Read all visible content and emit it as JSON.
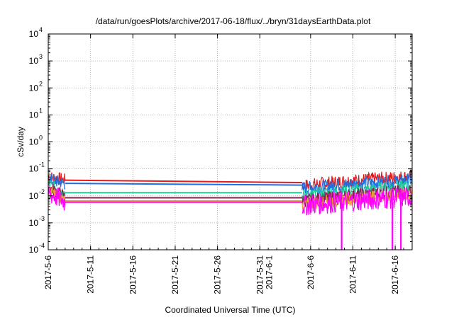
{
  "chart_data": {
    "type": "line",
    "title": "/data/run/goesPlots/archive/2017-06-18/flux/../bryn/31daysEarthData.plot",
    "xlabel": "Coordinated Universal Time (UTC)",
    "ylabel": "cSv/day",
    "yscale": "log",
    "ylim": [
      0.0001,
      10000
    ],
    "xlim": [
      "2017-05-06",
      "2017-06-18"
    ],
    "grid": true,
    "y_ticks": [
      {
        "exp": "-4",
        "value": 0.0001
      },
      {
        "exp": "-3",
        "value": 0.001
      },
      {
        "exp": "-2",
        "value": 0.01
      },
      {
        "exp": "-1",
        "value": 0.1
      },
      {
        "exp": "0",
        "value": 1
      },
      {
        "exp": "1",
        "value": 10
      },
      {
        "exp": "2",
        "value": 100
      },
      {
        "exp": "3",
        "value": 1000
      },
      {
        "exp": "4",
        "value": 10000
      }
    ],
    "x_ticks": [
      {
        "label": "2017-5-6",
        "date": "2017-05-06"
      },
      {
        "label": "2017-5-11",
        "date": "2017-05-11"
      },
      {
        "label": "2017-5-16",
        "date": "2017-05-16"
      },
      {
        "label": "2017-5-21",
        "date": "2017-05-21"
      },
      {
        "label": "2017-5-26",
        "date": "2017-05-26"
      },
      {
        "label": "2017-5-31",
        "label2": "2017-6-1",
        "date": "2017-05-31"
      },
      {
        "label": "2017-6-6",
        "date": "2017-06-06"
      },
      {
        "label": "2017-6-11",
        "date": "2017-06-11"
      },
      {
        "label": "2017-6-16",
        "date": "2017-06-16"
      }
    ],
    "series": [
      {
        "color": "#e41a1c",
        "x": [
          "2017-05-06",
          "2017-05-08",
          "2017-06-05",
          "2017-06-18"
        ],
        "y": [
          0.05,
          0.038,
          0.031,
          0.07
        ]
      },
      {
        "color": "#1f6fe0",
        "x": [
          "2017-05-06",
          "2017-05-08",
          "2017-06-05",
          "2017-06-18"
        ],
        "y": [
          0.04,
          0.029,
          0.025,
          0.05
        ]
      },
      {
        "color": "#1ec99a",
        "x": [
          "2017-05-06",
          "2017-05-08",
          "2017-06-05",
          "2017-06-18"
        ],
        "y": [
          0.025,
          0.013,
          0.013,
          0.03
        ]
      },
      {
        "color": "#8b2252",
        "x": [
          "2017-05-06",
          "2017-05-08",
          "2017-06-05",
          "2017-06-18"
        ],
        "y": [
          0.02,
          0.0085,
          0.0085,
          0.02
        ]
      },
      {
        "color": "#e8a030",
        "x": [
          "2017-05-06",
          "2017-05-08",
          "2017-06-05",
          "2017-06-18"
        ],
        "y": [
          0.015,
          0.0065,
          0.0065,
          0.015
        ]
      },
      {
        "color": "#ff00ff",
        "x": [
          "2017-05-06",
          "2017-05-08",
          "2017-06-05",
          "2017-06-18"
        ],
        "y": [
          0.012,
          0.0058,
          0.0058,
          0.012
        ]
      }
    ],
    "spikes": [
      {
        "date": "2017-06-09",
        "y": 0.0001
      },
      {
        "date": "2017-06-15",
        "y": 0.0001
      },
      {
        "date": "2017-06-16",
        "y": 0.0001
      }
    ]
  }
}
